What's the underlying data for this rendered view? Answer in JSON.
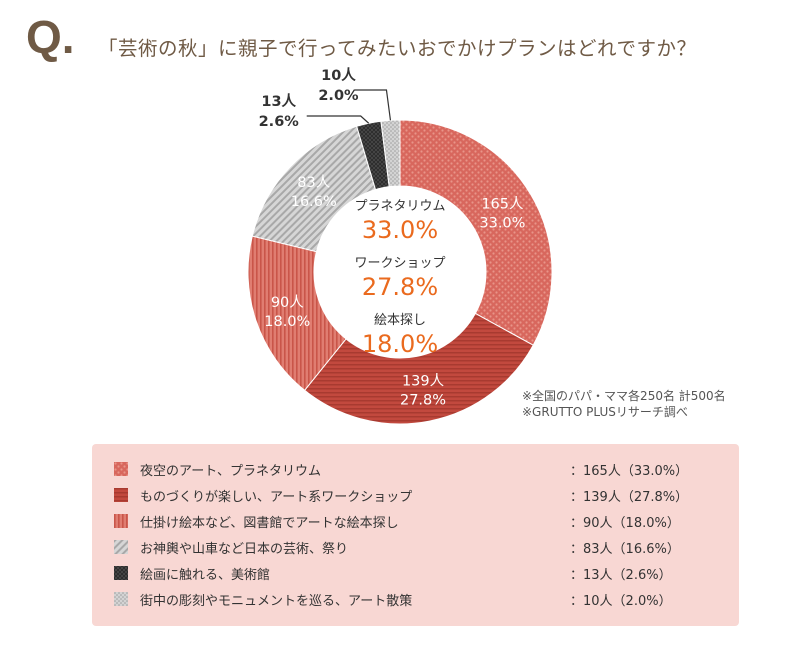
{
  "header": {
    "q_mark": "Q.",
    "question": "「芸術の秋」に親子で行ってみたいおでかけプランはどれですか？"
  },
  "notes": {
    "line1": "※全国のパパ・ママ各250名 計500名",
    "line2": "※GRUTTO PLUSリサーチ調べ"
  },
  "center_summary": [
    {
      "label": "プラネタリウム",
      "value": "33.0%"
    },
    {
      "label": "ワークショップ",
      "value": "27.8%"
    },
    {
      "label": "絵本探し",
      "value": "18.0%"
    }
  ],
  "chart_data": {
    "type": "pie",
    "donut": true,
    "title": "「芸術の秋」に親子で行ってみたいおでかけプランはどれですか？",
    "total": 500,
    "slices": [
      {
        "name": "夜空のアート、プラネタリウム",
        "count": 165,
        "count_label": "165人",
        "percent": 33.0,
        "percent_label": "33.0%",
        "legend_value": "：165人（33.0%）",
        "color": "#d8675d",
        "pattern": "dots"
      },
      {
        "name": "ものづくりが楽しい、アート系ワークショップ",
        "count": 139,
        "count_label": "139人",
        "percent": 27.8,
        "percent_label": "27.8%",
        "legend_value": "：139人（27.8%）",
        "color": "#bf4b40",
        "pattern": "horizontal-lines"
      },
      {
        "name": "仕掛け絵本など、図書館でアートな絵本探し",
        "count": 90,
        "count_label": "90人",
        "percent": 18.0,
        "percent_label": "18.0%",
        "legend_value": "：90人（18.0%）",
        "color": "#db6a5e",
        "pattern": "vertical-stripes"
      },
      {
        "name": "お神輿や山車など日本の芸術、祭り",
        "count": 83,
        "count_label": "83人",
        "percent": 16.6,
        "percent_label": "16.6%",
        "legend_value": "：83人（16.6%）",
        "color": "#b9b9b9",
        "pattern": "diagonal-lines"
      },
      {
        "name": "絵画に触れる、美術館",
        "count": 13,
        "count_label": "13人",
        "percent": 2.6,
        "percent_label": "2.6%",
        "legend_value": "：13人（2.6%）",
        "color": "#3d3d3d",
        "pattern": "crosshatch"
      },
      {
        "name": "街中の彫刻やモニュメントを巡る、アート散策",
        "count": 10,
        "count_label": "10人",
        "percent": 2.0,
        "percent_label": "2.0%",
        "legend_value": "：10人（2.0%）",
        "color": "#c2c2c2",
        "pattern": "fine-dots"
      }
    ],
    "colors": {
      "accent": "#ea6a1e",
      "question": "#6f5a45",
      "legend_background": "#f8d7d3"
    }
  }
}
